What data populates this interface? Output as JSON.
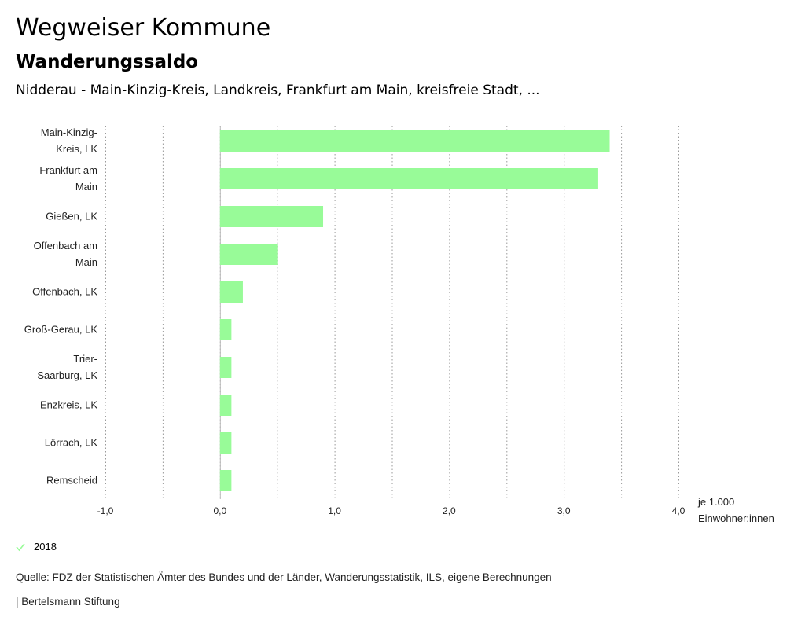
{
  "header": {
    "title": "Wegweiser Kommune",
    "subtitle": "Wanderungssaldo",
    "context": "Nidderau - Main-Kinzig-Kreis, Landkreis, Frankfurt am Main, kreisfreie Stadt, ..."
  },
  "chart_data": {
    "type": "bar",
    "orientation": "horizontal",
    "title": "Wanderungssaldo",
    "categories": [
      [
        "Main-Kinzig-",
        "Kreis, LK"
      ],
      [
        "Frankfurt am",
        "Main"
      ],
      [
        "Gießen, LK"
      ],
      [
        "Offenbach am",
        "Main"
      ],
      [
        "Offenbach, LK"
      ],
      [
        "Groß-Gerau, LK"
      ],
      [
        "Trier-",
        "Saarburg, LK"
      ],
      [
        "Enzkreis, LK"
      ],
      [
        "Lörrach, LK"
      ],
      [
        "Remscheid"
      ]
    ],
    "series": [
      {
        "name": "2018",
        "color": "#98fb98",
        "values": [
          3.4,
          3.3,
          0.9,
          0.5,
          0.2,
          0.1,
          0.1,
          0.1,
          0.1,
          0.1
        ]
      }
    ],
    "xlim": [
      -1.0,
      4.0
    ],
    "xticks": [
      "-1,0",
      "0,0",
      "1,0",
      "2,0",
      "3,0",
      "4,0"
    ],
    "xtick_values": [
      -1,
      0,
      1,
      2,
      3,
      4
    ],
    "minor_gridlines": [
      -0.5,
      0.5,
      1.5,
      2.5,
      3.5
    ],
    "unit_label": [
      "je 1.000",
      "Einwohner:innen"
    ],
    "grid": true
  },
  "legend": {
    "label": "2018",
    "color": "#98fb98",
    "icon": "check-icon"
  },
  "footer": {
    "source": "Quelle: FDZ der Statistischen Ämter des Bundes und der Länder, Wanderungsstatistik, ILS, eigene Berechnungen",
    "brand": "| Bertelsmann Stiftung"
  }
}
